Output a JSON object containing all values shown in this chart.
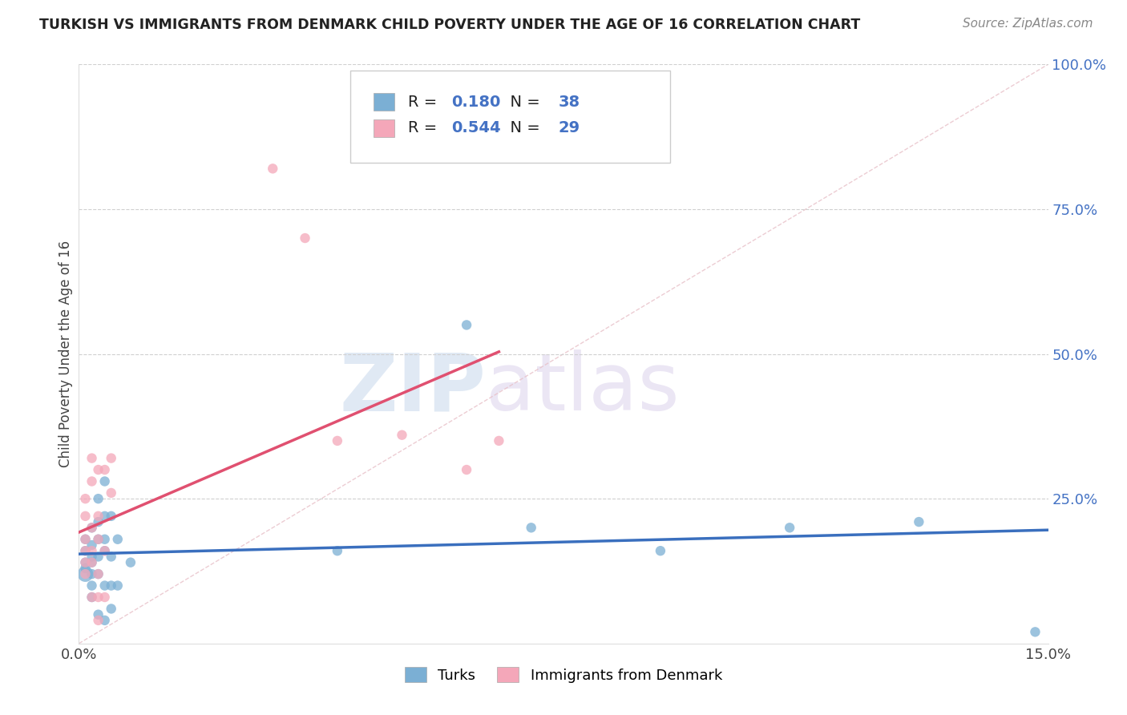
{
  "title": "TURKISH VS IMMIGRANTS FROM DENMARK CHILD POVERTY UNDER THE AGE OF 16 CORRELATION CHART",
  "source": "Source: ZipAtlas.com",
  "ylabel": "Child Poverty Under the Age of 16",
  "watermark_zip": "ZIP",
  "watermark_atlas": "atlas",
  "xlim": [
    0.0,
    0.15
  ],
  "ylim": [
    0.0,
    1.0
  ],
  "xticklabels": [
    "0.0%",
    "15.0%"
  ],
  "ytick_vals": [
    0.25,
    0.5,
    0.75,
    1.0
  ],
  "yticklabels": [
    "25.0%",
    "50.0%",
    "75.0%",
    "100.0%"
  ],
  "turks_color": "#7bafd4",
  "turks_edge": "#7bafd4",
  "denmark_color": "#f4a7b9",
  "denmark_edge": "#f4a7b9",
  "line_turks_color": "#3a6fbe",
  "line_denmark_color": "#e05070",
  "turks_R": 0.18,
  "turks_N": 38,
  "denmark_R": 0.544,
  "denmark_N": 29,
  "legend_turks": "Turks",
  "legend_denmark": "Immigrants from Denmark",
  "turks_x": [
    0.001,
    0.001,
    0.001,
    0.001,
    0.001,
    0.002,
    0.002,
    0.002,
    0.002,
    0.002,
    0.002,
    0.002,
    0.003,
    0.003,
    0.003,
    0.003,
    0.003,
    0.003,
    0.004,
    0.004,
    0.004,
    0.004,
    0.004,
    0.004,
    0.005,
    0.005,
    0.005,
    0.005,
    0.006,
    0.006,
    0.008,
    0.04,
    0.06,
    0.07,
    0.09,
    0.11,
    0.13,
    0.148
  ],
  "turks_y": [
    0.12,
    0.13,
    0.14,
    0.16,
    0.18,
    0.08,
    0.1,
    0.12,
    0.14,
    0.15,
    0.17,
    0.2,
    0.05,
    0.12,
    0.15,
    0.18,
    0.21,
    0.25,
    0.04,
    0.1,
    0.16,
    0.18,
    0.22,
    0.28,
    0.06,
    0.1,
    0.15,
    0.22,
    0.1,
    0.18,
    0.14,
    0.16,
    0.55,
    0.2,
    0.16,
    0.2,
    0.21,
    0.02
  ],
  "turks_sizes": [
    200,
    80,
    80,
    80,
    80,
    80,
    80,
    80,
    80,
    80,
    80,
    80,
    80,
    80,
    80,
    80,
    80,
    80,
    80,
    80,
    80,
    80,
    80,
    80,
    80,
    80,
    80,
    80,
    80,
    80,
    80,
    80,
    80,
    80,
    80,
    80,
    80,
    80
  ],
  "denmark_x": [
    0.001,
    0.001,
    0.001,
    0.001,
    0.001,
    0.001,
    0.002,
    0.002,
    0.002,
    0.002,
    0.002,
    0.002,
    0.003,
    0.003,
    0.003,
    0.003,
    0.003,
    0.003,
    0.004,
    0.004,
    0.004,
    0.005,
    0.005,
    0.03,
    0.035,
    0.04,
    0.05,
    0.06,
    0.065
  ],
  "denmark_y": [
    0.12,
    0.14,
    0.16,
    0.18,
    0.22,
    0.25,
    0.08,
    0.14,
    0.16,
    0.2,
    0.28,
    0.32,
    0.04,
    0.08,
    0.12,
    0.18,
    0.22,
    0.3,
    0.08,
    0.16,
    0.3,
    0.26,
    0.32,
    0.82,
    0.7,
    0.35,
    0.36,
    0.3,
    0.35
  ],
  "denmark_sizes": [
    80,
    80,
    80,
    80,
    80,
    80,
    80,
    80,
    80,
    80,
    80,
    80,
    80,
    80,
    80,
    80,
    80,
    80,
    80,
    80,
    80,
    80,
    80,
    80,
    80,
    80,
    80,
    80,
    80
  ]
}
